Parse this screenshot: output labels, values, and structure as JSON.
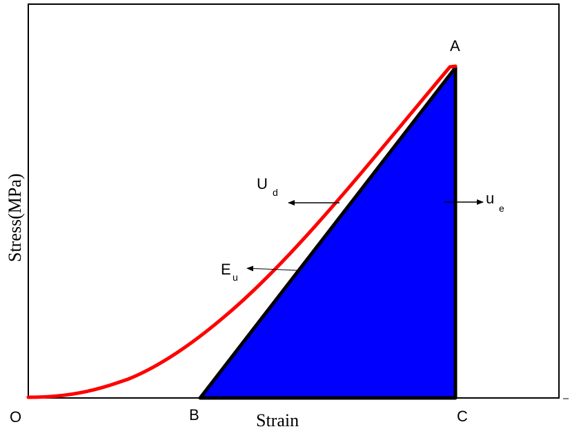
{
  "diagram": {
    "xlabel": "Strain",
    "ylabel": "Stress(MPa)",
    "points": {
      "origin": "O",
      "B": "B",
      "C": "C",
      "A": "A"
    },
    "labels": {
      "Ud_main": "U",
      "Ud_sub": "d",
      "ue_main": "u",
      "ue_sub": "e",
      "Eu_main": "E",
      "Eu_sub": "u"
    },
    "colors": {
      "curve": "#ff0000",
      "elastic_fill": "#0000ff",
      "outline": "#000000"
    }
  }
}
